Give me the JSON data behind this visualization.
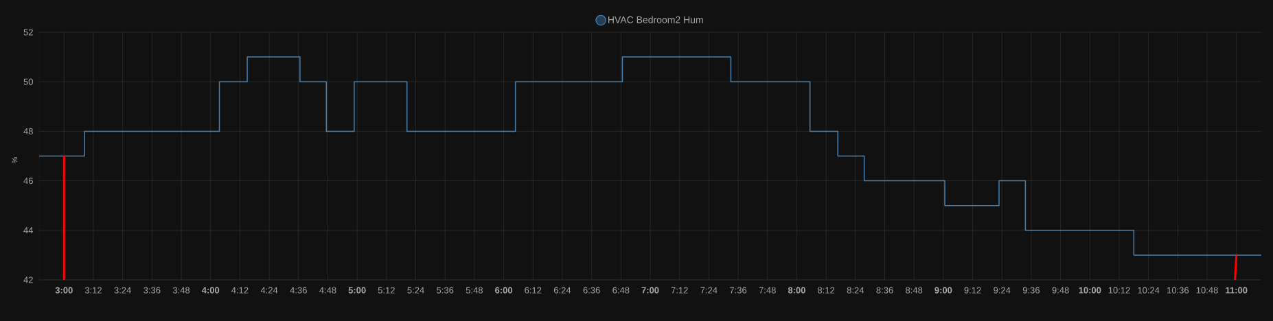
{
  "chart_data": {
    "type": "step",
    "ylabel": "%",
    "xlim": [
      2.83,
      11.17
    ],
    "ylim": [
      42,
      52
    ],
    "yticks": [
      42,
      44,
      46,
      48,
      50,
      52
    ],
    "xticks": [
      {
        "value": 3,
        "label": "3:00"
      },
      {
        "value": 3.2,
        "label": "3:12"
      },
      {
        "value": 3.4,
        "label": "3:24"
      },
      {
        "value": 3.6,
        "label": "3:36"
      },
      {
        "value": 3.8,
        "label": "3:48"
      },
      {
        "value": 4,
        "label": "4:00"
      },
      {
        "value": 4.2,
        "label": "4:12"
      },
      {
        "value": 4.4,
        "label": "4:24"
      },
      {
        "value": 4.6,
        "label": "4:36"
      },
      {
        "value": 4.8,
        "label": "4:48"
      },
      {
        "value": 5,
        "label": "5:00"
      },
      {
        "value": 5.2,
        "label": "5:12"
      },
      {
        "value": 5.4,
        "label": "5:24"
      },
      {
        "value": 5.6,
        "label": "5:36"
      },
      {
        "value": 5.8,
        "label": "5:48"
      },
      {
        "value": 6,
        "label": "6:00"
      },
      {
        "value": 6.2,
        "label": "6:12"
      },
      {
        "value": 6.4,
        "label": "6:24"
      },
      {
        "value": 6.6,
        "label": "6:36"
      },
      {
        "value": 6.8,
        "label": "6:48"
      },
      {
        "value": 7,
        "label": "7:00"
      },
      {
        "value": 7.2,
        "label": "7:12"
      },
      {
        "value": 7.4,
        "label": "7:24"
      },
      {
        "value": 7.6,
        "label": "7:36"
      },
      {
        "value": 7.8,
        "label": "7:48"
      },
      {
        "value": 8,
        "label": "8:00"
      },
      {
        "value": 8.2,
        "label": "8:12"
      },
      {
        "value": 8.4,
        "label": "8:24"
      },
      {
        "value": 8.6,
        "label": "8:36"
      },
      {
        "value": 8.8,
        "label": "8:48"
      },
      {
        "value": 9,
        "label": "9:00"
      },
      {
        "value": 9.2,
        "label": "9:12"
      },
      {
        "value": 9.4,
        "label": "9:24"
      },
      {
        "value": 9.6,
        "label": "9:36"
      },
      {
        "value": 9.8,
        "label": "9:48"
      },
      {
        "value": 10,
        "label": "10:00"
      },
      {
        "value": 10.2,
        "label": "10:12"
      },
      {
        "value": 10.4,
        "label": "10:24"
      },
      {
        "value": 10.6,
        "label": "10:36"
      },
      {
        "value": 10.8,
        "label": "10:48"
      },
      {
        "value": 11,
        "label": "11:00"
      }
    ],
    "grid": true,
    "legend": "top",
    "series": [
      {
        "name": "HVAC Bedroom2 Hum",
        "color": "#4682b4",
        "x": [
          2.83,
          3.14,
          4.06,
          4.25,
          4.61,
          4.79,
          4.98,
          5.34,
          6.08,
          6.81,
          7.55,
          8.09,
          8.28,
          8.46,
          9.01,
          9.38,
          9.56,
          10.3,
          11.17
        ],
        "values": [
          47,
          48,
          50,
          51,
          50,
          48,
          50,
          48,
          50,
          51,
          50,
          48,
          47,
          46,
          45,
          46,
          44,
          43,
          43
        ]
      },
      {
        "type": "line",
        "color": "#ff0000",
        "x": [
          3,
          3
        ],
        "values": [
          42,
          47
        ]
      },
      {
        "type": "line",
        "color": "#ff0000",
        "x": [
          10.99,
          11
        ],
        "values": [
          42,
          43
        ]
      }
    ]
  }
}
